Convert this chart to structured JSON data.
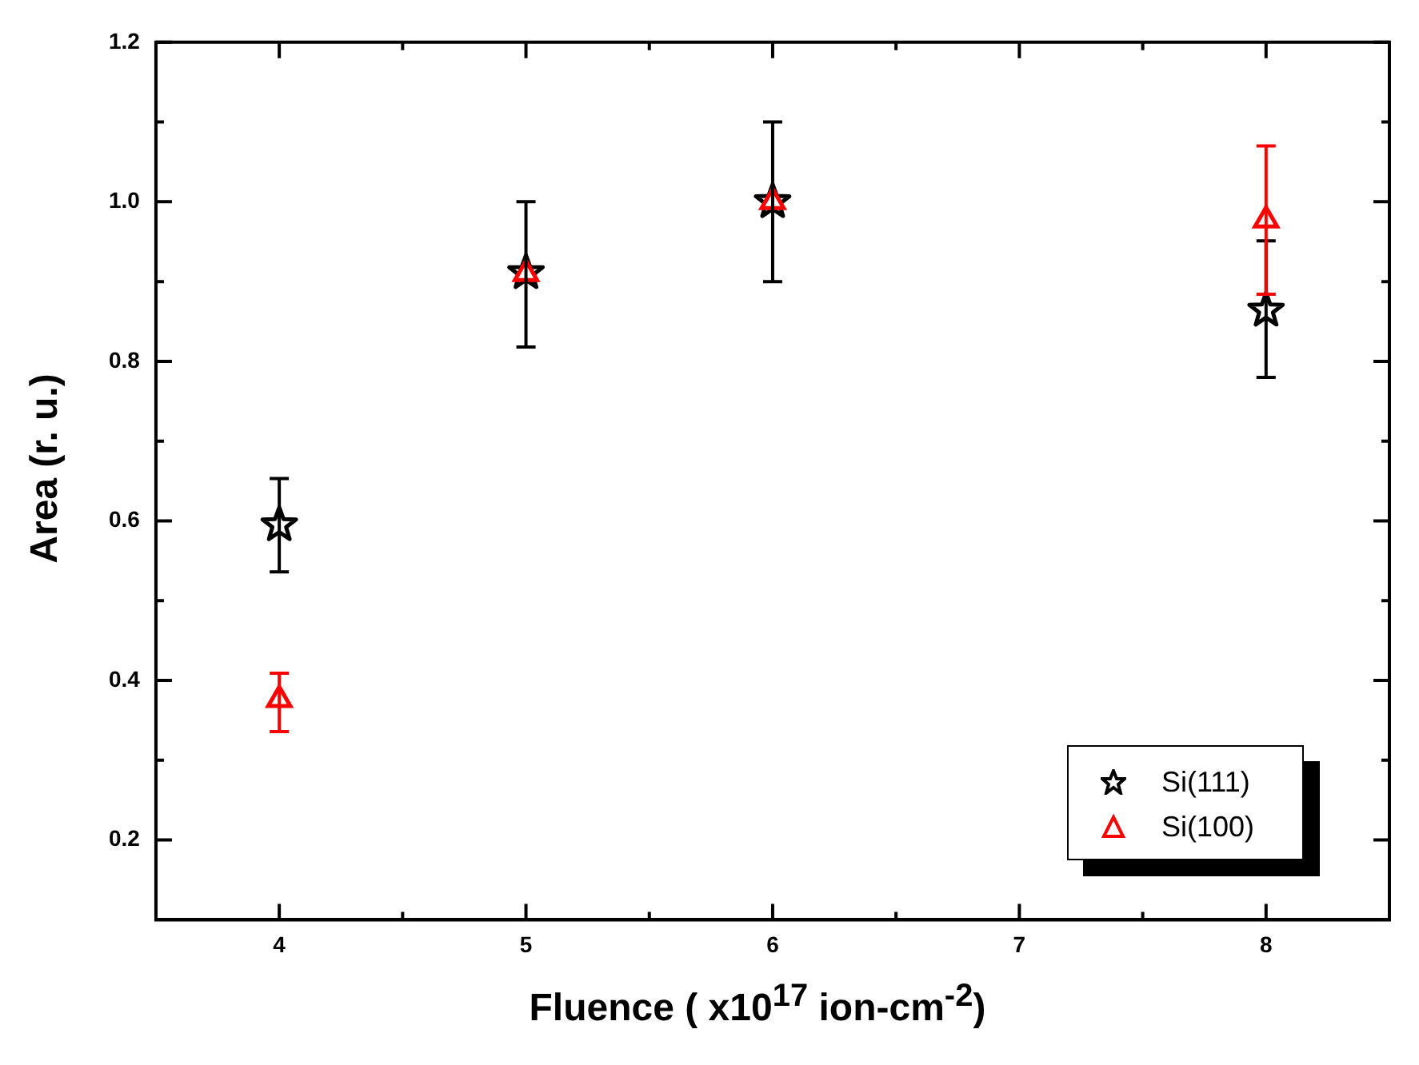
{
  "chart_data": {
    "type": "scatter",
    "xlabel": "Fluence ( x10$^{17}$ ion-cm$^{-2}$)",
    "ylabel": "Area (r. u.)",
    "xlim": [
      3.5,
      8.5
    ],
    "xticks": [
      4,
      5,
      6,
      7,
      8
    ],
    "ylim": [
      0.1,
      1.2
    ],
    "yticks": [
      0.2,
      0.4,
      0.6,
      0.8,
      {
        "value": 1,
        "label": "1.0"
      },
      1.2
    ],
    "grid": false,
    "legend": "bottom right",
    "series": [
      {
        "name": "Si(111)",
        "color": "#000000",
        "marker": "star",
        "x": [
          4,
          5,
          6,
          8
        ],
        "values": [
          0.595,
          0.911,
          1.0,
          0.864
        ],
        "errors": [
          [
            0.536,
            0.653
          ],
          [
            0.818,
            1.0
          ],
          [
            0.9,
            1.1
          ],
          [
            0.78,
            0.951
          ]
        ]
      },
      {
        "name": "Si(100)",
        "color": "#ff0000",
        "marker": "triangle",
        "x": [
          4,
          5,
          6,
          8
        ],
        "values": [
          0.376,
          0.91,
          1.0,
          0.977
        ],
        "errors": [
          [
            0.336,
            0.409
          ],
          null,
          null,
          [
            0.884,
            1.07
          ]
        ]
      }
    ]
  }
}
